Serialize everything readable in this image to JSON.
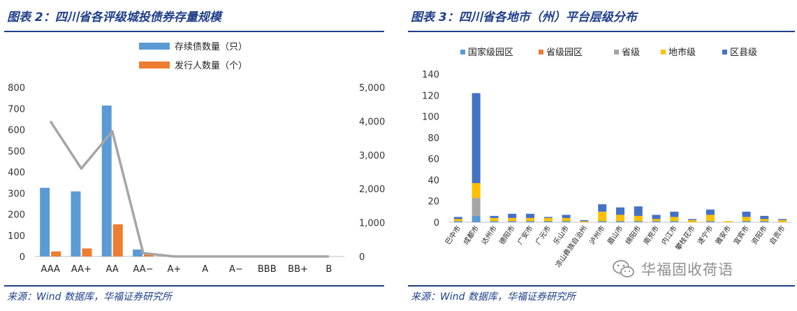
{
  "left": {
    "title": "图表 2：四川省各评级城投债券存量规模",
    "source": "来源：Wind 数据库，华福证券研究所"
  },
  "right": {
    "title": "图表 3：四川省各地市（州）平台层级分布",
    "source": "来源：Wind 数据库，华福证券研究所"
  },
  "watermark": {
    "text": "华福固收荷语",
    "icon": "wechat-icon"
  },
  "colors": {
    "blue": "#5b9bd5",
    "orange": "#ed7d31",
    "gray": "#a5a5a5",
    "yellow": "#ffc000",
    "darkblue": "#4472c4",
    "title": "#1f3f8a"
  },
  "chart_data": [
    {
      "type": "bar",
      "combo": "bar+line",
      "categories": [
        "AAA",
        "AA+",
        "AA",
        "AA−",
        "A+",
        "A",
        "A−",
        "BBB",
        "BB+",
        "B"
      ],
      "series": [
        {
          "name": "存续债数量（只）",
          "type": "bar",
          "axis": "left",
          "color": "#5b9bd5",
          "values": [
            325,
            308,
            714,
            33,
            0,
            0,
            0,
            0,
            0,
            0
          ]
        },
        {
          "name": "发行人数量（个）",
          "type": "bar",
          "axis": "left",
          "color": "#ed7d31",
          "values": [
            24,
            38,
            152,
            12,
            0,
            0,
            0,
            0,
            0,
            0
          ]
        },
        {
          "name": "",
          "type": "line",
          "axis": "right",
          "color": "#a5a5a5",
          "values": [
            4000,
            2600,
            3700,
            100,
            0,
            0,
            0,
            0,
            0,
            0
          ]
        }
      ],
      "ylim": [
        0,
        800
      ],
      "yticks": [
        "0",
        "100",
        "200",
        "300",
        "400",
        "500",
        "600",
        "700",
        "800"
      ],
      "y2lim": [
        0,
        5000
      ],
      "y2ticks": [
        "0",
        "1,000",
        "2,000",
        "3,000",
        "4,000",
        "5,000"
      ],
      "legend": "top-center",
      "grid": false
    },
    {
      "type": "bar",
      "stacked": true,
      "categories": [
        "巴中市",
        "成都市",
        "达州市",
        "德阳市",
        "广安市",
        "广元市",
        "乐山市",
        "凉山彝族自治州",
        "泸州市",
        "眉山市",
        "绵阳市",
        "南充市",
        "内江市",
        "攀枝花市",
        "遂宁市",
        "雅安市",
        "宜宾市",
        "资阳市",
        "自贡市"
      ],
      "series": [
        {
          "name": "国家级园区",
          "color": "#5b9bd5",
          "values": [
            1,
            6,
            1,
            1,
            1,
            1,
            1,
            0,
            1,
            1,
            1,
            1,
            1,
            0,
            1,
            0,
            1,
            1,
            0
          ]
        },
        {
          "name": "省级园区",
          "color": "#ed7d31",
          "values": [
            0,
            0,
            0,
            0,
            0,
            0,
            0,
            0,
            0,
            0,
            0,
            0,
            0,
            0,
            0,
            0,
            0,
            0,
            0
          ]
        },
        {
          "name": "省级",
          "color": "#a5a5a5",
          "values": [
            0,
            17,
            0,
            0,
            0,
            0,
            0,
            0,
            0,
            0,
            0,
            0,
            0,
            0,
            0,
            0,
            0,
            0,
            0
          ]
        },
        {
          "name": "地市级",
          "color": "#ffc000",
          "values": [
            2,
            14,
            3,
            3,
            3,
            3,
            3,
            1,
            9,
            6,
            5,
            2,
            4,
            2,
            6,
            1,
            4,
            2,
            2
          ]
        },
        {
          "name": "区县级",
          "color": "#4472c4",
          "values": [
            2,
            85,
            2,
            4,
            4,
            1,
            3,
            1,
            7,
            7,
            9,
            4,
            5,
            1,
            5,
            0,
            5,
            3,
            1
          ]
        }
      ],
      "ylim": [
        0,
        140
      ],
      "yticks": [
        "0",
        "20",
        "40",
        "60",
        "80",
        "100",
        "120",
        "140"
      ],
      "legend": "top",
      "grid": false
    }
  ]
}
